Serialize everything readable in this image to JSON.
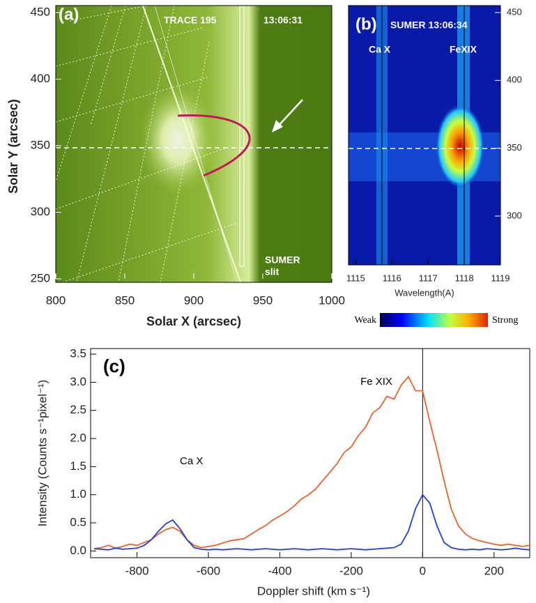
{
  "chart_data": [
    {
      "type": "image",
      "title": "(a)",
      "annotations": [
        "TRACE 195",
        "13:06:31"
      ],
      "note_lines": [
        "SUMER",
        "slit"
      ],
      "xlabel": "Solar X  (arcsec)",
      "ylabel": "Solar Y  (arcsec)",
      "xlim": [
        800,
        1000
      ],
      "xticks": [
        800,
        850,
        900,
        950,
        1000
      ],
      "ylim": [
        250,
        450
      ],
      "yticks": [
        250,
        300,
        350,
        400,
        450
      ]
    },
    {
      "type": "image",
      "title": "(b)",
      "annotations": [
        "SUMER 13:06:34",
        "Ca X",
        "FeXIX"
      ],
      "xlabel": "Wavelength(A)",
      "colorbar_labels": [
        "Weak",
        "Strong"
      ],
      "xlim": [
        1114.8,
        1119.0
      ],
      "xticks": [
        1115,
        1116,
        1117,
        1118,
        1119
      ],
      "ylim": [
        264,
        450
      ],
      "yticks": [
        300,
        350,
        400,
        450
      ]
    },
    {
      "type": "line",
      "title": "(c)",
      "annotations": [
        "Ca X",
        "Fe XIX"
      ],
      "xlabel": "Doppler shift (km s⁻¹)",
      "ylabel": "Intensity (Counts s⁻¹pixel⁻¹)",
      "xlim": [
        -930,
        300
      ],
      "xticks": [
        -800,
        -600,
        -400,
        -200,
        0,
        200
      ],
      "ylim": [
        -0.12,
        3.6
      ],
      "yticks": [
        {
          "value": 0,
          "label": "0.0"
        },
        0.5,
        {
          "value": 1,
          "label": "1.0"
        },
        1.5,
        {
          "value": 2,
          "label": "2.0"
        },
        2.5,
        {
          "value": 3,
          "label": "3.0"
        },
        3.5
      ],
      "x": [
        -920,
        -900,
        -880,
        -860,
        -840,
        -820,
        -800,
        -780,
        -760,
        -740,
        -720,
        -700,
        -680,
        -660,
        -640,
        -620,
        -600,
        -580,
        -560,
        -540,
        -520,
        -500,
        -480,
        -460,
        -440,
        -420,
        -400,
        -380,
        -360,
        -340,
        -320,
        -300,
        -280,
        -260,
        -240,
        -220,
        -200,
        -180,
        -160,
        -140,
        -120,
        -100,
        -80,
        -60,
        -40,
        -20,
        0,
        20,
        40,
        60,
        80,
        100,
        120,
        140,
        160,
        180,
        200,
        220,
        240,
        260,
        280,
        300
      ],
      "series": [
        {
          "color": "#e8632a",
          "values": [
            0.04,
            0.06,
            0.1,
            0.05,
            0.08,
            0.12,
            0.1,
            0.15,
            0.2,
            0.3,
            0.38,
            0.42,
            0.35,
            0.2,
            0.1,
            0.06,
            0.08,
            0.1,
            0.14,
            0.18,
            0.2,
            0.22,
            0.3,
            0.38,
            0.45,
            0.55,
            0.62,
            0.7,
            0.8,
            0.92,
            1.0,
            1.1,
            1.25,
            1.4,
            1.55,
            1.75,
            1.85,
            2.05,
            2.2,
            2.45,
            2.55,
            2.75,
            2.7,
            2.95,
            3.1,
            2.85,
            2.85,
            2.3,
            1.8,
            1.25,
            0.75,
            0.45,
            0.3,
            0.22,
            0.18,
            0.15,
            0.12,
            0.1,
            0.12,
            0.1,
            0.08,
            0.1
          ]
        },
        {
          "color": "#1f3fd6",
          "values": [
            0.04,
            0.03,
            0.02,
            0.05,
            0.03,
            0.04,
            0.05,
            0.1,
            0.2,
            0.35,
            0.48,
            0.55,
            0.4,
            0.2,
            0.06,
            0.03,
            0.02,
            0.03,
            0.02,
            0.03,
            0.04,
            0.03,
            0.02,
            0.03,
            0.04,
            0.03,
            0.02,
            0.03,
            0.04,
            0.03,
            0.02,
            0.03,
            0.04,
            0.03,
            0.02,
            0.03,
            0.04,
            0.03,
            0.02,
            0.03,
            0.04,
            0.05,
            0.06,
            0.12,
            0.35,
            0.75,
            1.0,
            0.85,
            0.45,
            0.15,
            0.06,
            0.03,
            0.02,
            0.03,
            0.02,
            0.04,
            0.03,
            0.02,
            0.03,
            0.05,
            0.03,
            0.02
          ]
        }
      ]
    }
  ]
}
